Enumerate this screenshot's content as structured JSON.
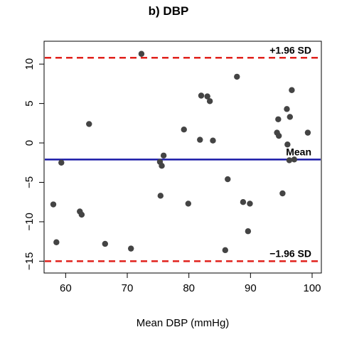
{
  "chart_data": {
    "type": "scatter",
    "title": "b) DBP",
    "xlabel": "Mean DBP (mmHg)",
    "ylabel": "",
    "xlim": [
      56.5,
      101.5
    ],
    "ylim": [
      -16.5,
      12.9
    ],
    "x_ticks": [
      60,
      70,
      80,
      90,
      100
    ],
    "y_ticks": [
      -15,
      -10,
      -5,
      0,
      5,
      10
    ],
    "y_tick_labels": [
      "−15",
      "−10",
      "−5",
      "0",
      "5",
      "10"
    ],
    "grid": false,
    "point_color": "#444444",
    "points": [
      {
        "x": 58.0,
        "y": -7.8
      },
      {
        "x": 58.5,
        "y": -12.6
      },
      {
        "x": 59.3,
        "y": -2.5
      },
      {
        "x": 62.3,
        "y": -8.7
      },
      {
        "x": 62.6,
        "y": -9.1
      },
      {
        "x": 63.8,
        "y": 2.4
      },
      {
        "x": 66.4,
        "y": -12.8
      },
      {
        "x": 70.6,
        "y": -13.4
      },
      {
        "x": 72.3,
        "y": 11.3
      },
      {
        "x": 75.3,
        "y": -2.4
      },
      {
        "x": 75.4,
        "y": -6.7
      },
      {
        "x": 75.6,
        "y": -2.9
      },
      {
        "x": 75.9,
        "y": -1.6
      },
      {
        "x": 79.2,
        "y": 1.7
      },
      {
        "x": 79.9,
        "y": -7.7
      },
      {
        "x": 81.8,
        "y": 0.4
      },
      {
        "x": 82.0,
        "y": 6.0
      },
      {
        "x": 83.0,
        "y": 5.9
      },
      {
        "x": 83.4,
        "y": 5.3
      },
      {
        "x": 83.9,
        "y": 0.3
      },
      {
        "x": 85.9,
        "y": -13.6
      },
      {
        "x": 86.3,
        "y": -4.6
      },
      {
        "x": 87.8,
        "y": 8.4
      },
      {
        "x": 88.8,
        "y": -7.5
      },
      {
        "x": 89.6,
        "y": -11.2
      },
      {
        "x": 89.9,
        "y": -7.7
      },
      {
        "x": 94.3,
        "y": 1.3
      },
      {
        "x": 94.5,
        "y": 3.0
      },
      {
        "x": 94.6,
        "y": 0.9
      },
      {
        "x": 95.2,
        "y": -6.4
      },
      {
        "x": 95.9,
        "y": 4.3
      },
      {
        "x": 96.0,
        "y": -0.2
      },
      {
        "x": 96.3,
        "y": -2.2
      },
      {
        "x": 96.4,
        "y": 3.3
      },
      {
        "x": 96.7,
        "y": 6.7
      },
      {
        "x": 97.1,
        "y": -2.1
      },
      {
        "x": 99.3,
        "y": 1.3
      }
    ],
    "reference_lines": [
      {
        "label": "+1.96 SD",
        "y": 10.8,
        "color": "#e0201b",
        "style": "dashed"
      },
      {
        "label": "Mean",
        "y": -2.1,
        "color": "#1a1aa8",
        "style": "solid"
      },
      {
        "label": "−1.96 SD",
        "y": -15.0,
        "color": "#e0201b",
        "style": "dashed"
      }
    ]
  }
}
